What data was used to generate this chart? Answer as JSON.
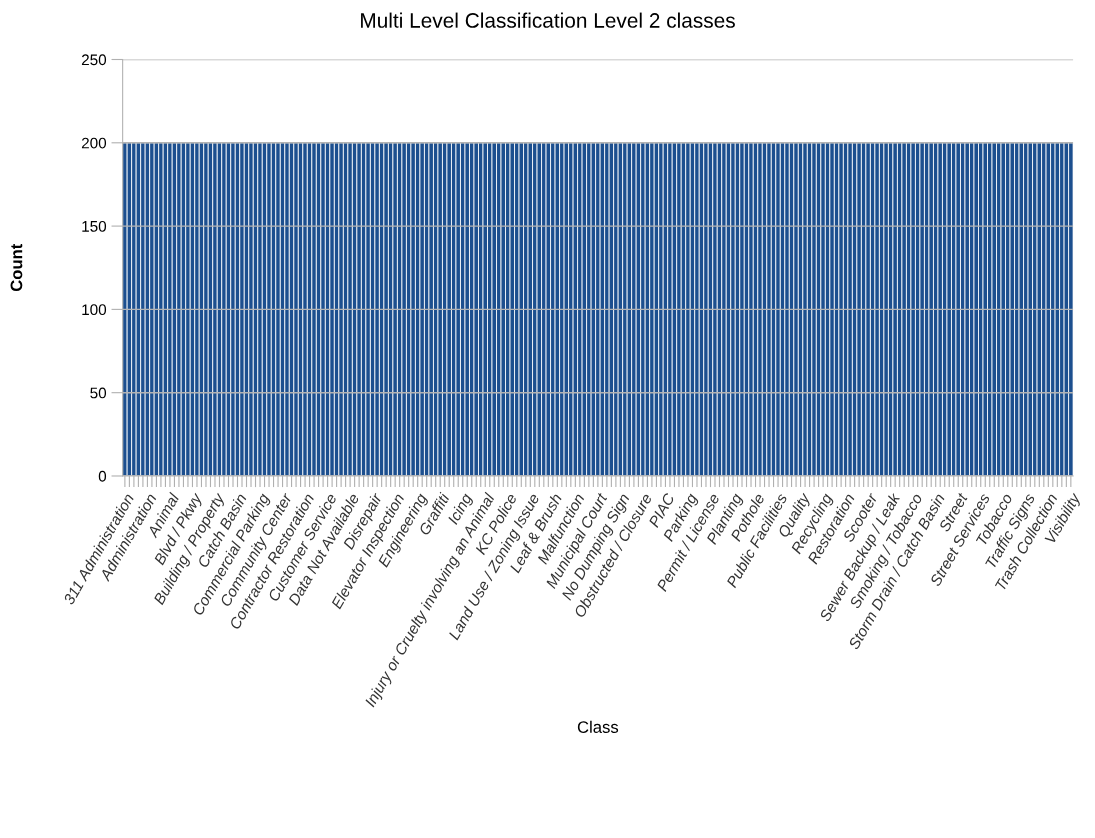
{
  "chart_data": {
    "type": "bar",
    "title": "Multi Level Classification Level 2 classes",
    "xlabel": "Class",
    "ylabel": "Count",
    "categories": [
      "311 Administration",
      null,
      null,
      null,
      null,
      "Administration",
      null,
      null,
      null,
      null,
      "Animal",
      null,
      null,
      null,
      null,
      "Blvd / Pkwy",
      null,
      null,
      null,
      null,
      "Building / Property",
      null,
      null,
      null,
      null,
      "Catch Basin",
      null,
      null,
      null,
      null,
      "Commercial Parking",
      null,
      null,
      null,
      null,
      "Community Center",
      null,
      null,
      null,
      null,
      "Contractor Restoration",
      null,
      null,
      null,
      null,
      "Customer Service",
      null,
      null,
      null,
      null,
      "Data Not Available",
      null,
      null,
      null,
      null,
      "Disrepair",
      null,
      null,
      null,
      null,
      "Elevator Inspection",
      null,
      null,
      null,
      null,
      "Engineering",
      null,
      null,
      null,
      null,
      "Graffiti",
      null,
      null,
      null,
      null,
      "Icing",
      null,
      null,
      null,
      null,
      "Injury or Cruelty involving an Animal",
      null,
      null,
      null,
      null,
      "KC Police",
      null,
      null,
      null,
      null,
      "Land Use / Zoning Issue",
      null,
      null,
      null,
      null,
      "Leaf & Brush",
      null,
      null,
      null,
      null,
      "Malfunction",
      null,
      null,
      null,
      null,
      "Municipal Court",
      null,
      null,
      null,
      null,
      "No Dumping Sign",
      null,
      null,
      null,
      null,
      "Obstructed / Closure",
      null,
      null,
      null,
      null,
      "PIAC",
      null,
      null,
      null,
      null,
      "Parking",
      null,
      null,
      null,
      null,
      "Permit / License",
      null,
      null,
      null,
      null,
      "Planting",
      null,
      null,
      null,
      null,
      "Pothole",
      null,
      null,
      null,
      null,
      "Public Facilities",
      null,
      null,
      null,
      null,
      "Quality",
      null,
      null,
      null,
      null,
      "Recycling",
      null,
      null,
      null,
      null,
      "Restoration",
      null,
      null,
      null,
      null,
      "Scooter",
      null,
      null,
      null,
      null,
      "Sewer Backup / Leak",
      null,
      null,
      null,
      null,
      "Smoking / Tobacco",
      null,
      null,
      null,
      null,
      "Storm Drain / Catch Basin",
      null,
      null,
      null,
      null,
      "Street",
      null,
      null,
      null,
      null,
      "Street Services",
      null,
      null,
      null,
      null,
      "Tobacco",
      null,
      null,
      null,
      null,
      "Traffic Signs",
      null,
      null,
      null,
      null,
      "Trash Collection",
      null,
      null,
      null,
      null,
      "Visibility"
    ],
    "values": [
      200,
      200,
      200,
      200,
      200,
      200,
      200,
      200,
      200,
      200,
      200,
      200,
      200,
      200,
      200,
      200,
      200,
      200,
      200,
      200,
      200,
      200,
      200,
      200,
      200,
      200,
      200,
      200,
      200,
      200,
      200,
      200,
      200,
      200,
      200,
      200,
      200,
      200,
      200,
      200,
      200,
      200,
      200,
      200,
      200,
      200,
      200,
      200,
      200,
      200,
      200,
      200,
      200,
      200,
      200,
      200,
      200,
      200,
      200,
      200,
      200,
      200,
      200,
      200,
      200,
      200,
      200,
      200,
      200,
      200,
      200,
      200,
      200,
      200,
      200,
      200,
      200,
      200,
      200,
      200,
      200,
      200,
      200,
      200,
      200,
      200,
      200,
      200,
      200,
      200,
      200,
      200,
      200,
      200,
      200,
      200,
      200,
      200,
      200,
      200,
      200,
      200,
      200,
      200,
      200,
      200,
      200,
      200,
      200,
      200,
      200,
      200,
      200,
      200,
      200,
      200,
      200,
      200,
      200,
      200,
      200,
      200,
      200,
      200,
      200,
      200,
      200,
      200,
      200,
      200,
      200,
      200,
      200,
      200,
      200,
      200,
      200,
      200,
      200,
      200,
      200,
      200,
      200,
      200,
      200,
      200,
      200,
      200,
      200,
      200,
      200,
      200,
      200,
      200,
      200,
      200,
      200,
      200,
      200,
      200,
      200,
      200,
      200,
      200,
      200,
      200,
      200,
      200,
      200,
      200,
      200,
      200,
      200,
      200,
      200,
      200,
      200,
      200,
      200,
      200,
      200,
      200,
      200,
      200,
      200,
      200,
      200,
      200,
      200,
      200,
      200,
      200,
      200,
      200,
      200,
      200,
      200,
      200,
      200,
      200,
      200,
      200,
      200,
      200,
      200,
      200,
      200,
      200,
      200,
      200,
      200
    ],
    "color": "#1c4f8f",
    "ylim": [
      0,
      250
    ],
    "yticks": [
      0,
      50,
      100,
      150,
      200,
      250
    ],
    "grid": "y",
    "legend": false
  }
}
